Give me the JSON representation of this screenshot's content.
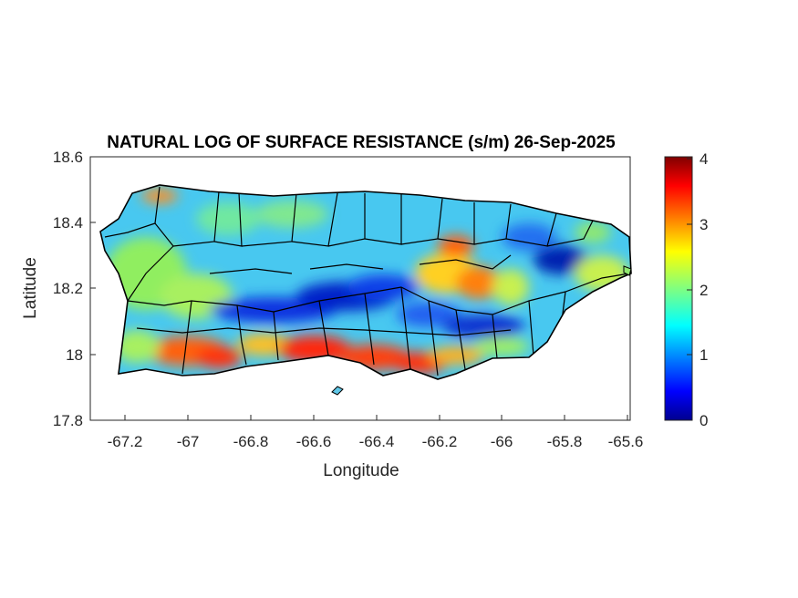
{
  "title": "NATURAL LOG OF SURFACE RESISTANCE (s/m) 26-Sep-2025",
  "xlabel": "Longitude",
  "ylabel": "Latitude",
  "xticks": [
    "-67.2",
    "-67",
    "-66.8",
    "-66.6",
    "-66.4",
    "-66.2",
    "-66",
    "-65.8",
    "-65.6"
  ],
  "yticks": [
    "18.6",
    "18.4",
    "18.2",
    "18",
    "17.8"
  ],
  "colorbar_ticks": [
    "4",
    "3",
    "2",
    "1",
    "0"
  ],
  "map": {
    "region": "Puerto Rico",
    "variable": "natural log of surface resistance",
    "units": "s/m",
    "date": "26-Sep-2025",
    "colormap": "jet",
    "color_range": [
      0,
      4
    ],
    "xlim": [
      -67.3,
      -65.59
    ],
    "ylim": [
      17.8,
      18.6
    ],
    "boundaries": "municipality outlines in black"
  },
  "colors": {
    "low": "#00008f",
    "mid_low": "#0080ff",
    "mid": "#80ff80",
    "mid_high": "#ffcc00",
    "high": "#800000"
  }
}
